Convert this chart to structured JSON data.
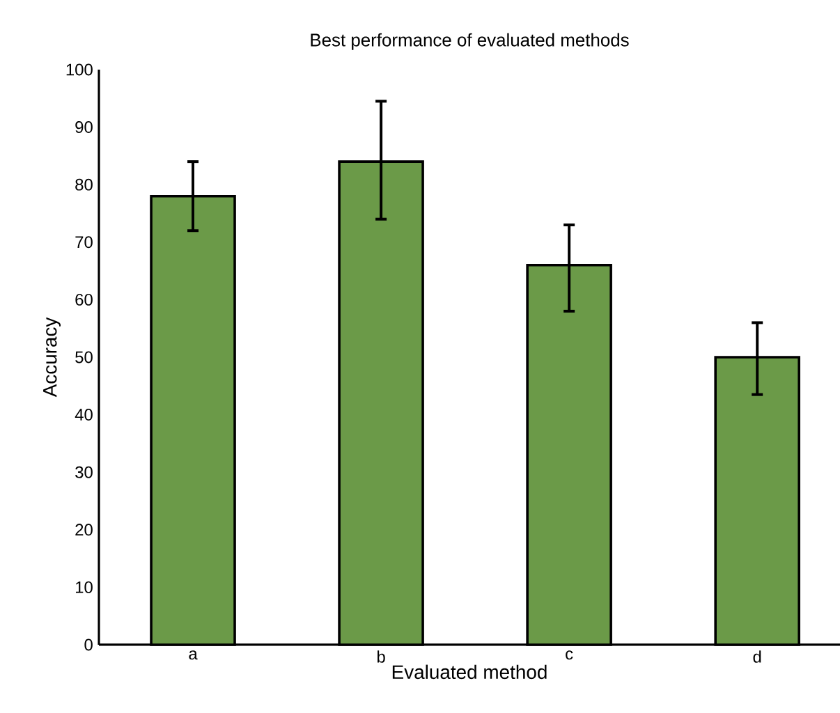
{
  "chart_data": {
    "type": "bar",
    "title": "Best performance of evaluated methods",
    "xlabel": "Evaluated method",
    "ylabel": "Accuracy",
    "categories": [
      "a",
      "b",
      "c",
      "d"
    ],
    "values": [
      78,
      84,
      66,
      50
    ],
    "errors": [
      [
        72,
        84
      ],
      [
        74,
        94.5
      ],
      [
        58,
        73
      ],
      [
        43.5,
        56
      ]
    ],
    "color": "#6b9a48",
    "ylim": [
      0,
      100
    ],
    "yticks": [
      0,
      10,
      20,
      30,
      40,
      50,
      60,
      70,
      80,
      90,
      100
    ],
    "grid": false
  }
}
